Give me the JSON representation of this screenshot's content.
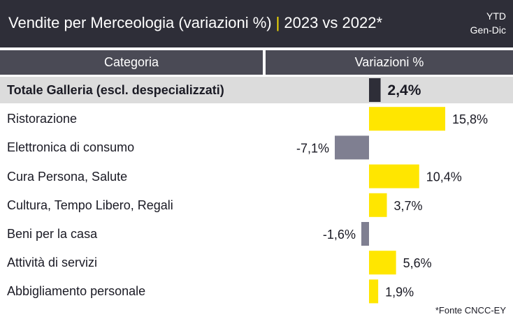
{
  "header": {
    "title": "Vendite per Merceologia (variazioni %)",
    "subtitle": "2023 vs 2022*",
    "period_line1": "YTD",
    "period_line2": "Gen-Dic"
  },
  "columns": {
    "category": "Categoria",
    "variation": "Variazioni %"
  },
  "footnote": "*Fonte CNCC-EY",
  "colors": {
    "header_bg": "#2e2e38",
    "accent": "#ffe600",
    "positive": "#ffe600",
    "negative": "#7f7f91",
    "total": "#2e2e38"
  },
  "chart_data": {
    "type": "bar",
    "orientation": "horizontal",
    "title": "Vendite per Merceologia (variazioni %) | 2023 vs 2022*",
    "unit": "%",
    "categories": [
      "Totale Galleria (escl. despecializzati)",
      "Ristorazione",
      "Elettronica di consumo",
      "Cura Persona, Salute",
      "Cultura, Tempo Libero, Regali",
      "Beni per la casa",
      "Attività di servizi",
      "Abbigliamento personale"
    ],
    "values": [
      2.4,
      15.8,
      -7.1,
      10.4,
      3.7,
      -1.6,
      5.6,
      1.9
    ],
    "value_labels": [
      "2,4%",
      "15,8%",
      "-7,1%",
      "10,4%",
      "3,7%",
      "-1,6%",
      "5,6%",
      "1,9%"
    ],
    "highlight_index": 0
  }
}
